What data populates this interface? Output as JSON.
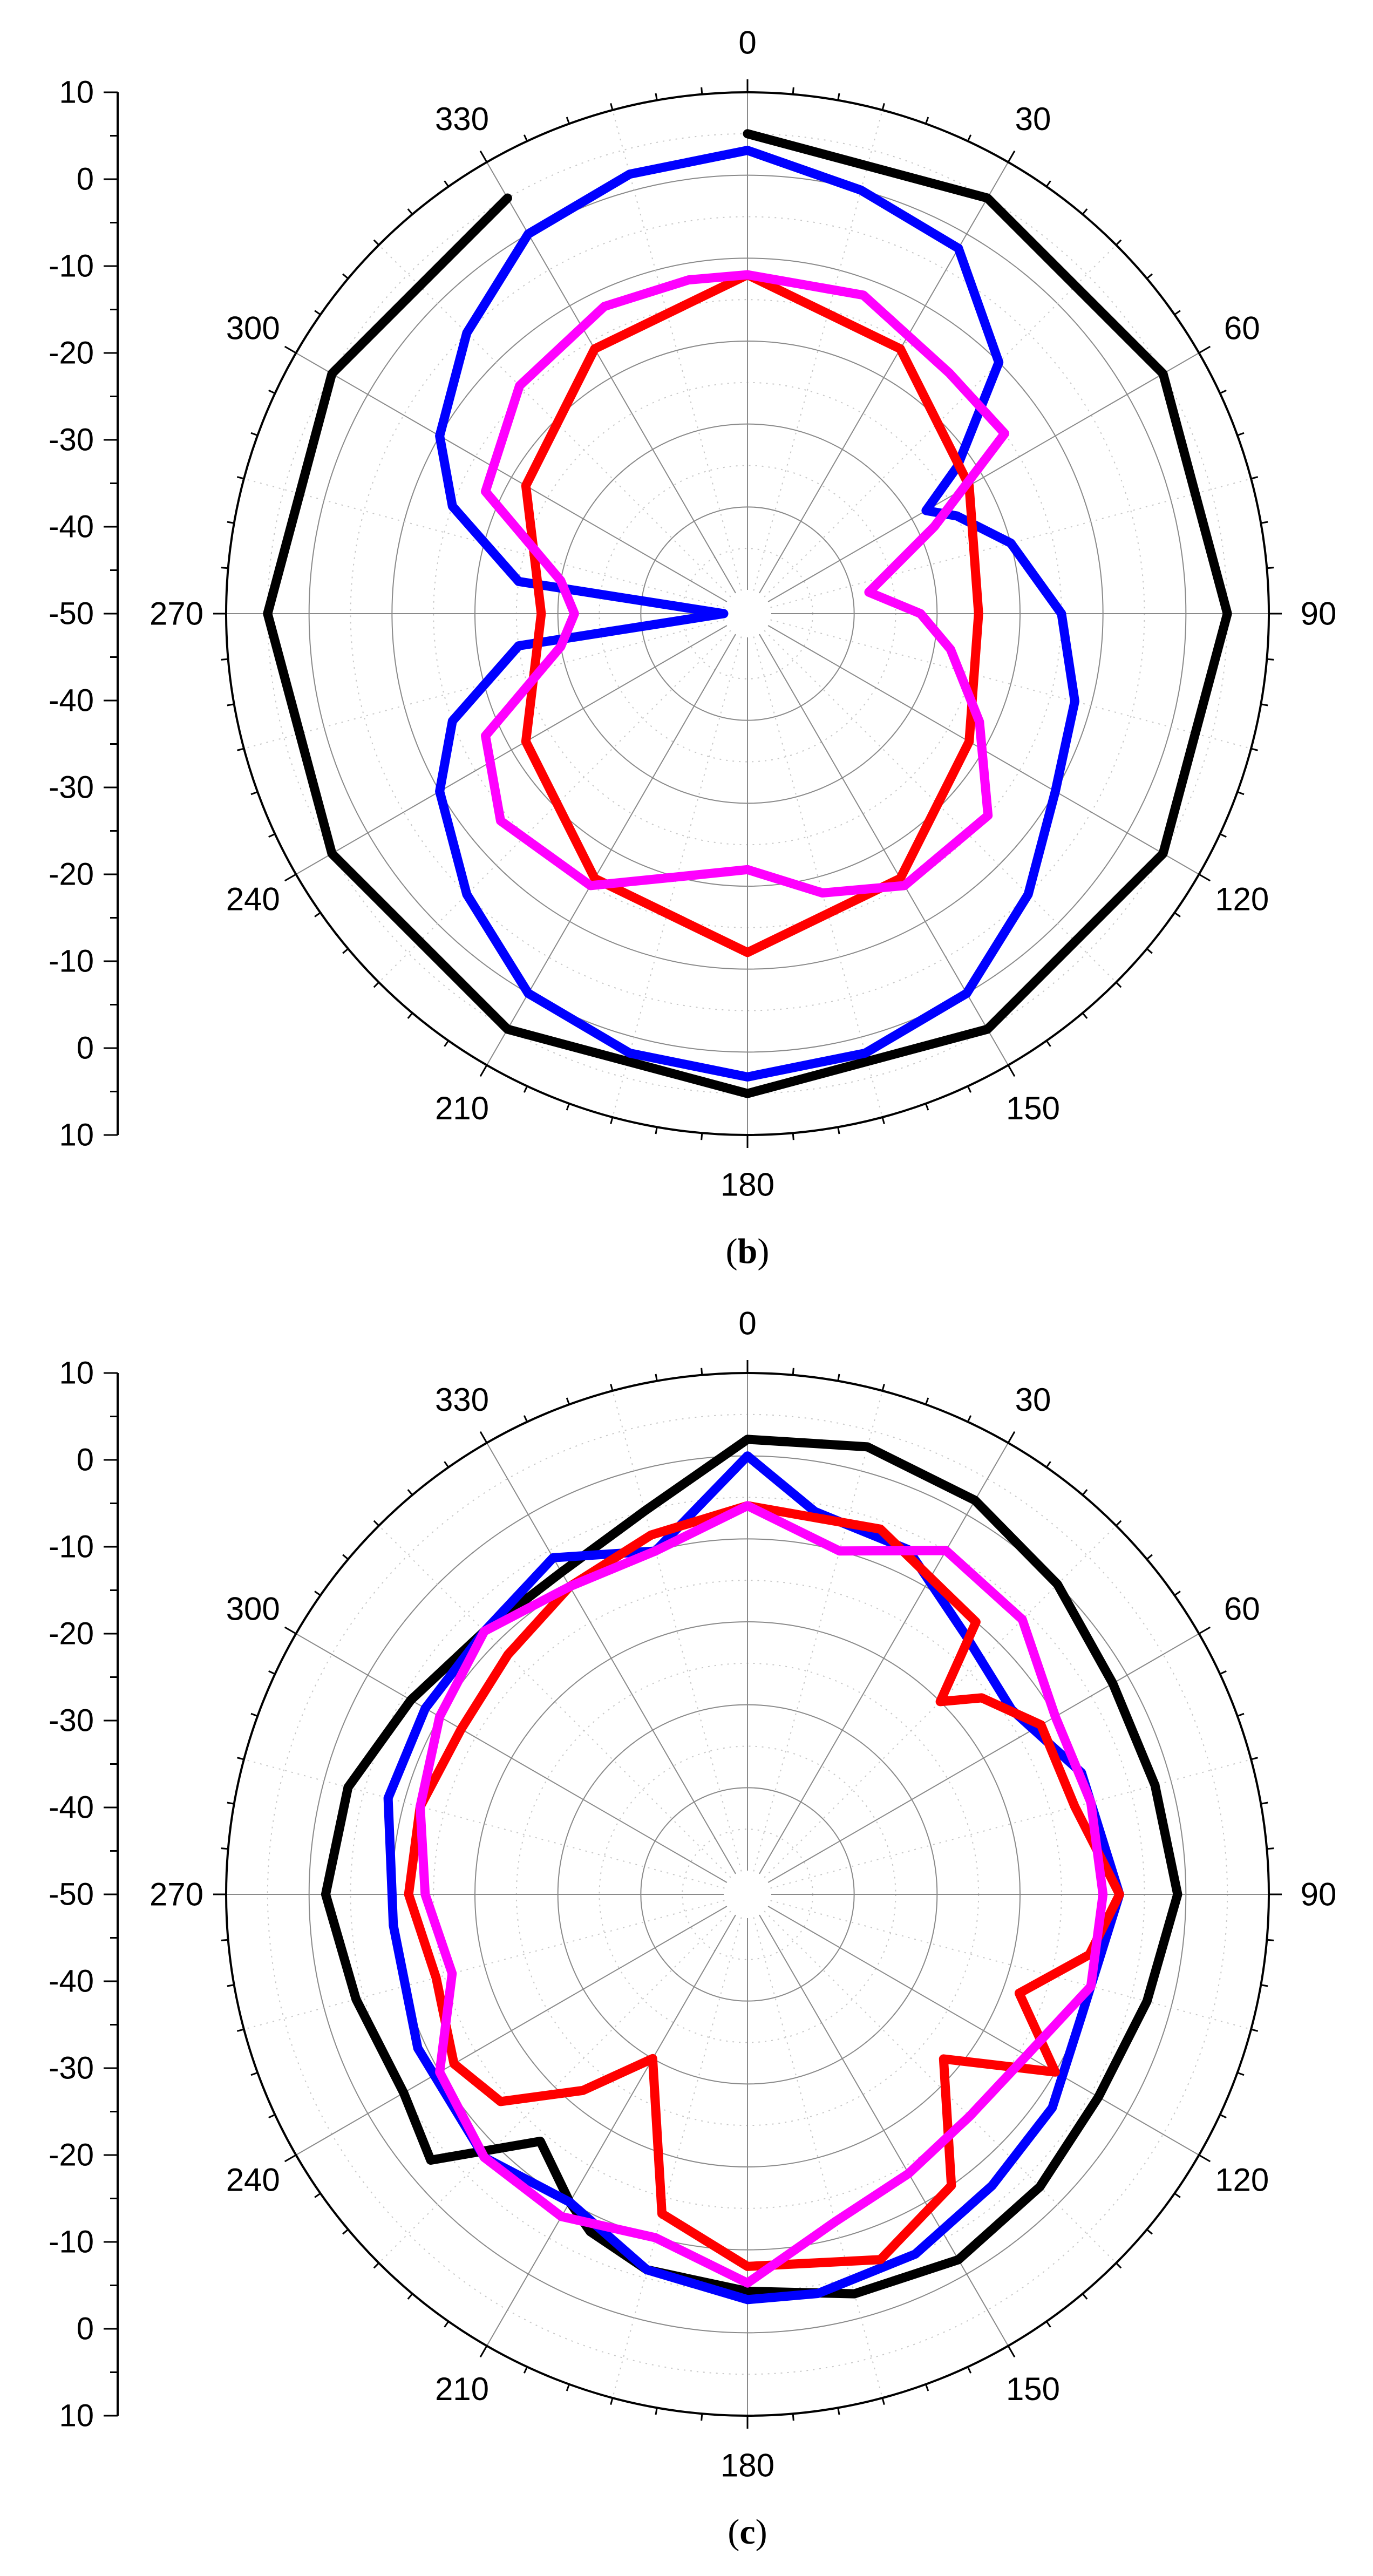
{
  "chart_data": [
    {
      "type": "polar-line",
      "panel": "b",
      "caption": {
        "open": "(",
        "letter": "b",
        "close": ")"
      },
      "radial_axis": {
        "min": -50,
        "max": 10,
        "ring_step": 10,
        "tick_labels": [
          "10",
          "0",
          "-10",
          "-20",
          "-30",
          "-40",
          "-50",
          "-40",
          "-30",
          "-20",
          "-10",
          "0",
          "10"
        ]
      },
      "angle_labels": [
        "0",
        "30",
        "60",
        "90",
        "120",
        "150",
        "180",
        "210",
        "240",
        "270",
        "300",
        "330"
      ],
      "grid": true,
      "series": [
        {
          "name": "black",
          "color": "#000000",
          "angles": [
            0,
            30,
            60,
            90,
            120,
            150,
            180,
            210,
            240,
            270,
            300,
            330
          ],
          "values": [
            5,
            5,
            5,
            5,
            5,
            5,
            5,
            5,
            5,
            5,
            5,
            5
          ]
        },
        {
          "name": "blue",
          "color": "#0000ff",
          "angles": [
            0,
            15,
            30,
            45,
            55,
            60,
            65,
            75,
            90,
            105,
            120,
            135,
            150,
            165,
            180,
            195,
            210,
            225,
            240,
            250,
            262,
            270,
            278,
            290,
            300,
            315,
            330,
            345,
            360
          ],
          "values": [
            3,
            0,
            -2,
            -10,
            -22,
            -28,
            -25,
            -20,
            -15,
            -12,
            -10,
            -5,
            0,
            2,
            3,
            2,
            0,
            -5,
            -10,
            -15,
            -25,
            -50,
            -25,
            -15,
            -10,
            -5,
            0,
            2,
            3
          ]
        },
        {
          "name": "red",
          "color": "#ff0000",
          "angles": [
            0,
            30,
            60,
            90,
            120,
            150,
            180,
            210,
            240,
            270,
            300,
            330,
            360
          ],
          "values": [
            -12,
            -16,
            -22,
            -25,
            -22,
            -16,
            -12,
            -16,
            -22,
            -28,
            -22,
            -16,
            -12
          ]
        },
        {
          "name": "magenta",
          "color": "#ff00ff",
          "angles": [
            0,
            20,
            40,
            55,
            65,
            80,
            90,
            100,
            115,
            130,
            150,
            165,
            180,
            195,
            210,
            230,
            245,
            260,
            270,
            280,
            295,
            315,
            335,
            350,
            360
          ],
          "values": [
            -12,
            -12,
            -15,
            -15,
            -28,
            -38,
            -32,
            -28,
            -22,
            -15,
            -15,
            -18,
            -22,
            -20,
            -15,
            -14,
            -18,
            -30,
            -32,
            -30,
            -18,
            -14,
            -12,
            -12,
            -12
          ]
        }
      ]
    },
    {
      "type": "polar-line",
      "panel": "c",
      "caption": {
        "open": "(",
        "letter": "c",
        "close": ")"
      },
      "radial_axis": {
        "min": -50,
        "max": 10,
        "ring_step": 10,
        "tick_labels": [
          "10",
          "0",
          "-10",
          "-20",
          "-30",
          "-40",
          "-50",
          "-40",
          "-30",
          "-20",
          "-10",
          "0",
          "10"
        ]
      },
      "angle_labels": [
        "0",
        "30",
        "60",
        "90",
        "120",
        "150",
        "180",
        "210",
        "240",
        "270",
        "300",
        "330"
      ],
      "grid": true,
      "series": [
        {
          "name": "black",
          "color": "#000000",
          "angles": [
            0,
            15,
            30,
            45,
            60,
            75,
            90,
            105,
            120,
            135,
            150,
            165,
            180,
            195,
            205,
            210,
            220,
            230,
            240,
            255,
            270,
            285,
            300,
            315,
            330,
            345,
            360
          ],
          "values": [
            2,
            3,
            2,
            0,
            -2,
            -2,
            -1,
            -3,
            -4,
            -3,
            -2,
            -3,
            -5,
            -6,
            -8,
            -10,
            -14,
            -3,
            -5,
            -4,
            -2,
            -3,
            -6,
            -8,
            -8,
            -5,
            2
          ]
        },
        {
          "name": "blue",
          "color": "#0000ff",
          "angles": [
            0,
            10,
            25,
            40,
            55,
            70,
            90,
            110,
            125,
            140,
            155,
            170,
            180,
            195,
            210,
            225,
            245,
            265,
            285,
            300,
            315,
            330,
            345,
            360
          ],
          "values": [
            0,
            -6,
            -7,
            -12,
            -14,
            -10,
            -8,
            -10,
            -8,
            -7,
            -5,
            -4,
            -4,
            -6,
            -10,
            -8,
            -9,
            -10,
            -8,
            -8,
            -8,
            -6,
            -10,
            0
          ]
        },
        {
          "name": "red",
          "color": "#ff0000",
          "angles": [
            0,
            20,
            40,
            45,
            50,
            60,
            75,
            90,
            100,
            110,
            120,
            130,
            145,
            160,
            180,
            195,
            210,
            220,
            230,
            240,
            255,
            270,
            285,
            300,
            315,
            330,
            345,
            360
          ],
          "values": [
            -6,
            -6,
            -10,
            -20,
            -16,
            -12,
            -12,
            -8,
            -11,
            -18,
            -10,
            -22,
            -10,
            -6,
            -8,
            -13,
            -30,
            -22,
            -14,
            -12,
            -14,
            -12,
            -12,
            -13,
            -12,
            -10,
            -8,
            -6
          ]
        },
        {
          "name": "magenta",
          "color": "#ff00ff",
          "angles": [
            0,
            15,
            30,
            45,
            60,
            75,
            90,
            105,
            120,
            135,
            150,
            165,
            180,
            195,
            210,
            225,
            240,
            255,
            270,
            285,
            300,
            315,
            330,
            345,
            360
          ],
          "values": [
            -6,
            -10,
            -5,
            -6,
            -10,
            -10,
            -10,
            -10,
            -14,
            -15,
            -14,
            -12,
            -6,
            -10,
            -8,
            -8,
            -10,
            -16,
            -14,
            -12,
            -10,
            -8,
            -10,
            -10,
            -6
          ]
        }
      ]
    }
  ]
}
